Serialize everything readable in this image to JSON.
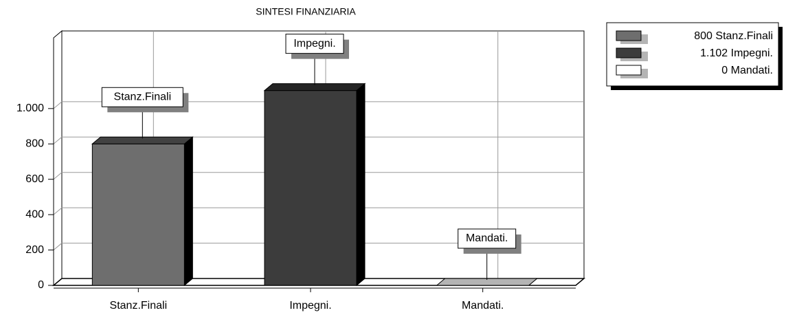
{
  "chart_data": {
    "type": "bar3d",
    "title": "SINTESI FINANZIARIA",
    "categories": [
      "Stanz.Finali",
      "Impegni.",
      "Mandati."
    ],
    "values": [
      800,
      1102,
      0
    ],
    "value_labels": [
      "800",
      "1.102",
      "0"
    ],
    "colors": [
      "#6e6e6e",
      "#3c3c3c",
      "#ffffff"
    ],
    "ylim": [
      0,
      1400
    ],
    "yticks": [
      0,
      200,
      400,
      600,
      800,
      {
        "value": 1000,
        "label": "1.000"
      }
    ],
    "grid": true,
    "legend": "top-right"
  }
}
